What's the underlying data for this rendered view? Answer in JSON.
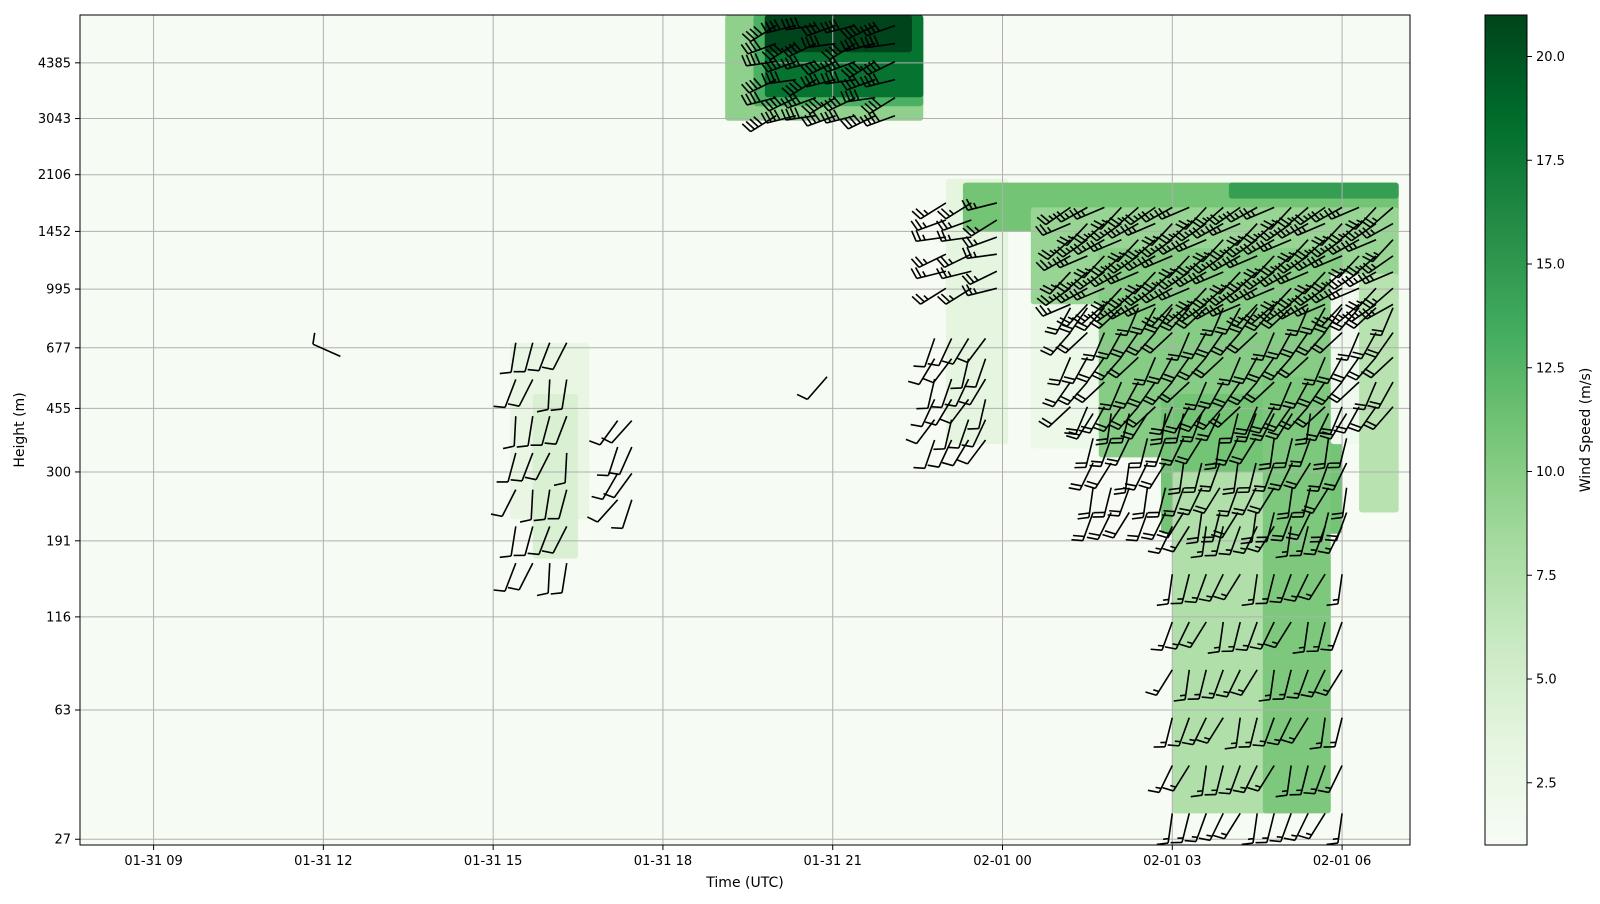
{
  "chart_data": {
    "type": "heatmap",
    "title": "",
    "xlabel": "Time (UTC)",
    "ylabel": "Height (m)",
    "colorbar_label": "Wind Speed (m/s)",
    "colormap": "Greens",
    "colormap_stops": [
      "#f7fcf5",
      "#e5f5e0",
      "#c7e9c0",
      "#a1d99b",
      "#74c476",
      "#41ab5d",
      "#238b45",
      "#006d2c",
      "#00441b"
    ],
    "colorbar_range": [
      1.0,
      21.0
    ],
    "colorbar_ticks": [
      2.5,
      5.0,
      7.5,
      10.0,
      12.5,
      15.0,
      17.5,
      20.0
    ],
    "colorbar_tick_labels": [
      "2.5",
      "5.0",
      "7.5",
      "10.0",
      "12.5",
      "15.0",
      "17.5",
      "20.0"
    ],
    "x_range_hours": [
      7.7,
      31.2
    ],
    "x_ticks_hours": [
      9,
      12,
      15,
      18,
      21,
      24,
      27,
      30
    ],
    "x_tick_labels": [
      "01-31 09",
      "01-31 12",
      "01-31 15",
      "01-31 18",
      "01-31 21",
      "02-01 00",
      "02-01 03",
      "02-01 06"
    ],
    "y_scale": "log",
    "y_range": [
      26,
      6000
    ],
    "y_ticks": [
      27,
      63,
      116,
      191,
      300,
      455,
      677,
      995,
      1452,
      2106,
      3043,
      4385
    ],
    "y_tick_labels": [
      "27",
      "63",
      "116",
      "191",
      "300",
      "455",
      "677",
      "995",
      "1452",
      "2106",
      "3043",
      "4385"
    ],
    "grid": true,
    "background_speed": 1.2,
    "regions": [
      {
        "t0": 19.1,
        "t1": 22.6,
        "z0": 3000,
        "z1": 6000,
        "speed": 9.5
      },
      {
        "t0": 19.6,
        "t1": 22.6,
        "z0": 3300,
        "z1": 6000,
        "speed": 13.0
      },
      {
        "t0": 19.8,
        "t1": 22.6,
        "z0": 3500,
        "z1": 6000,
        "speed": 18.0
      },
      {
        "t0": 19.8,
        "t1": 22.4,
        "z0": 4700,
        "z1": 6000,
        "speed": 21.0
      },
      {
        "t0": 15.3,
        "t1": 16.7,
        "z0": 220,
        "z1": 700,
        "speed": 3.0
      },
      {
        "t0": 15.7,
        "t1": 16.5,
        "z0": 170,
        "z1": 500,
        "speed": 4.5
      },
      {
        "t0": 23.0,
        "t1": 24.1,
        "z0": 360,
        "z1": 2050,
        "speed": 3.5
      },
      {
        "t0": 23.3,
        "t1": 31.0,
        "z0": 1450,
        "z1": 2000,
        "speed": 11.0
      },
      {
        "t0": 24.5,
        "t1": 31.0,
        "z0": 900,
        "z1": 1700,
        "speed": 9.0
      },
      {
        "t0": 24.5,
        "t1": 25.7,
        "z0": 350,
        "z1": 900,
        "speed": 2.5
      },
      {
        "t0": 25.7,
        "t1": 30.0,
        "z0": 330,
        "z1": 1300,
        "speed": 10.0
      },
      {
        "t0": 26.8,
        "t1": 30.0,
        "z0": 200,
        "z1": 500,
        "speed": 11.0
      },
      {
        "t0": 27.0,
        "t1": 29.3,
        "z0": 32,
        "z1": 300,
        "speed": 7.5
      },
      {
        "t0": 28.6,
        "t1": 29.8,
        "z0": 32,
        "z1": 560,
        "speed": 10.5
      },
      {
        "t0": 29.8,
        "t1": 30.3,
        "z0": 360,
        "z1": 1100,
        "speed": 2.0
      },
      {
        "t0": 30.3,
        "t1": 31.0,
        "z0": 230,
        "z1": 1100,
        "speed": 7.0
      },
      {
        "t0": 28.0,
        "t1": 31.0,
        "z0": 1800,
        "z1": 2000,
        "speed": 14.5
      }
    ],
    "barb_groups": [
      {
        "t0": 20.0,
        "t1": 22.2,
        "z0": 3100,
        "z1": 5600,
        "dt": 0.35,
        "nz": 6,
        "speed": 20.0,
        "dir": 250
      },
      {
        "t0": 23.0,
        "t1": 24.0,
        "z0": 1000,
        "z1": 1750,
        "dt": 0.45,
        "nz": 6,
        "speed": 12.0,
        "dir": 250
      },
      {
        "t0": 22.8,
        "t1": 23.9,
        "z0": 370,
        "z1": 720,
        "dt": 0.3,
        "nz": 6,
        "speed": 6.0,
        "dir": 205
      },
      {
        "t0": 25.2,
        "t1": 31.0,
        "z0": 900,
        "z1": 1700,
        "dt": 0.3,
        "nz": 7,
        "speed": 12.0,
        "dir": 235
      },
      {
        "t0": 25.2,
        "t1": 31.0,
        "z0": 460,
        "z1": 880,
        "dt": 0.3,
        "nz": 5,
        "speed": 11.0,
        "dir": 215
      },
      {
        "t0": 25.6,
        "t1": 30.3,
        "z0": 230,
        "z1": 440,
        "dt": 0.32,
        "nz": 5,
        "speed": 9.0,
        "dir": 200
      },
      {
        "t0": 27.0,
        "t1": 30.2,
        "z0": 32,
        "z1": 210,
        "dt": 0.3,
        "nz": 7,
        "speed": 8.0,
        "dir": 200
      },
      {
        "t0": 15.4,
        "t1": 16.5,
        "z0": 165,
        "z1": 700,
        "dt": 0.3,
        "nz": 7,
        "speed": 5.0,
        "dir": 195
      },
      {
        "t0": 17.2,
        "t1": 17.6,
        "z0": 250,
        "z1": 420,
        "dt": 0.25,
        "nz": 4,
        "speed": 5.0,
        "dir": 210
      },
      {
        "t0": 12.3,
        "t1": 12.4,
        "z0": 640,
        "z1": 650,
        "dt": 0.3,
        "nz": 1,
        "speed": 5.0,
        "dir": 300
      },
      {
        "t0": 20.9,
        "t1": 21.0,
        "z0": 560,
        "z1": 570,
        "dt": 0.3,
        "nz": 1,
        "speed": 5.0,
        "dir": 215
      }
    ]
  }
}
